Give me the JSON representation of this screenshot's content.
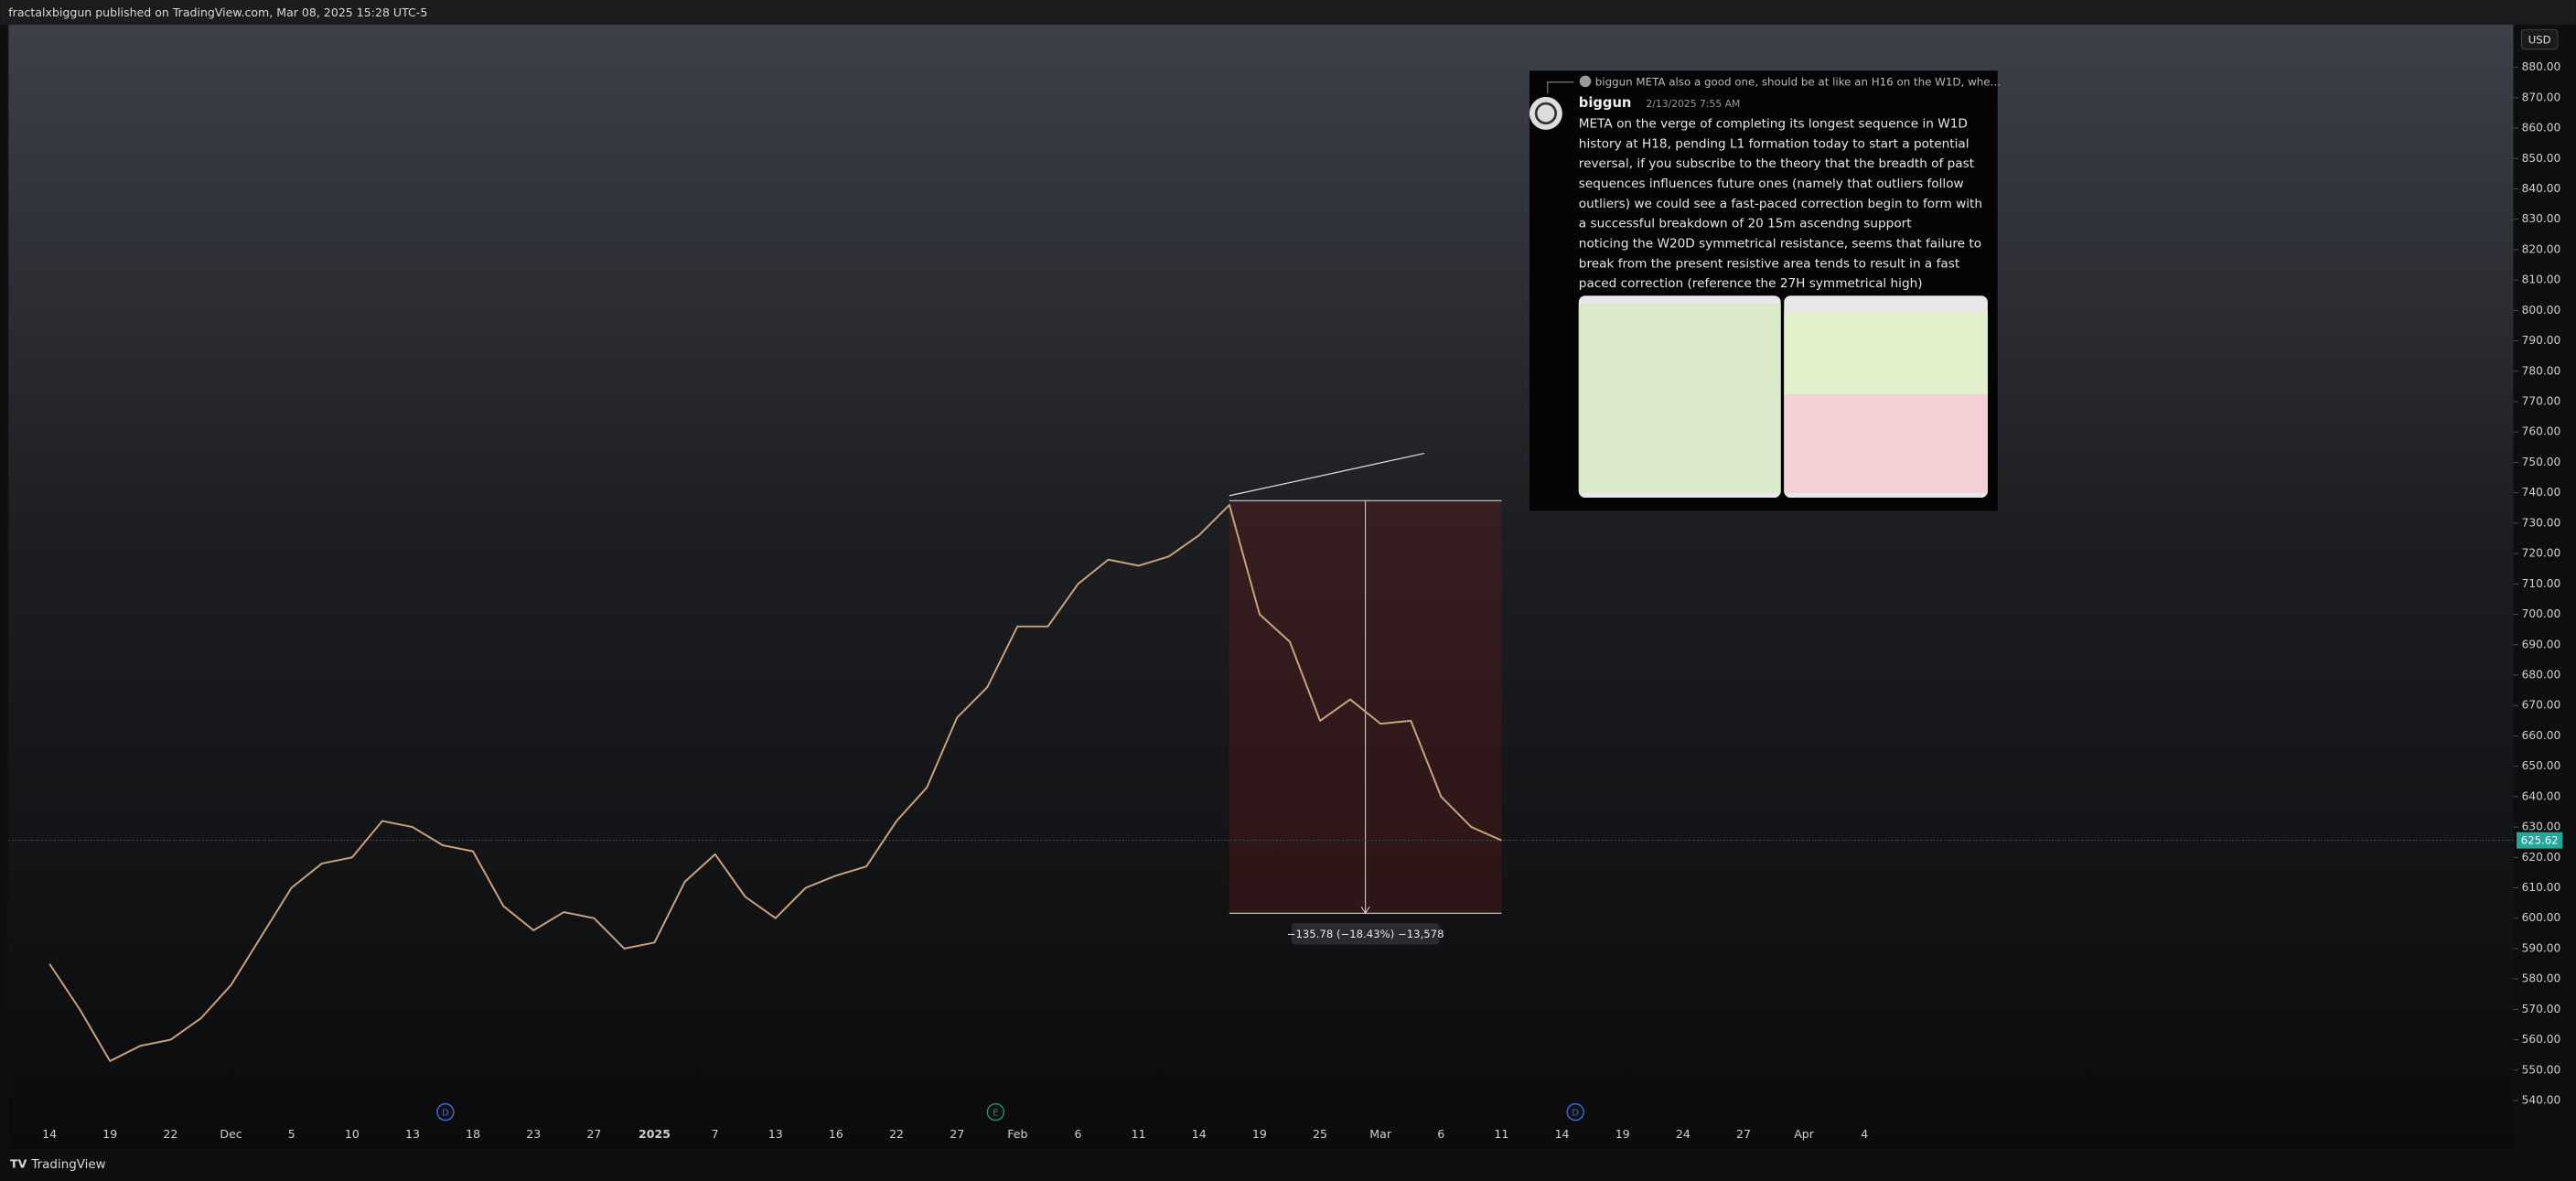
{
  "header": "fractalxbiggun published on TradingView.com, Mar 08, 2025 15:28 UTC-5",
  "footer": "TradingView",
  "chart_data": {
    "type": "line",
    "currency": "USD",
    "categories": [
      "14",
      null,
      "19",
      null,
      "22",
      null,
      "Dec",
      null,
      "5",
      null,
      "10",
      null,
      "13",
      null,
      "18",
      null,
      "23",
      null,
      "27",
      null,
      "2025",
      null,
      "7",
      null,
      "13",
      null,
      "16",
      null,
      "22",
      null,
      "27",
      null,
      "Feb",
      null,
      "6",
      null,
      "11",
      null,
      "14",
      null,
      "19",
      null,
      "25",
      null,
      "Mar",
      null,
      "6",
      null,
      "11",
      null,
      "14",
      null,
      "19",
      null,
      "24",
      null,
      "27",
      null,
      "Apr",
      null,
      "4"
    ],
    "series": [
      {
        "name": "META",
        "color": "#c9a27e",
        "values": [
          585,
          570,
          553,
          558,
          560,
          567,
          578,
          594,
          610,
          618,
          620,
          632,
          630,
          624,
          622,
          604,
          596,
          602,
          600,
          590,
          592,
          612,
          621,
          607,
          600,
          610,
          614,
          617,
          632,
          643,
          666,
          676,
          696,
          696,
          710,
          718,
          716,
          719,
          726,
          736,
          700,
          691,
          665,
          672,
          664,
          665,
          640,
          630,
          625.62,
          null,
          null,
          null,
          null,
          null,
          null,
          null,
          null,
          null,
          null,
          null,
          null
        ]
      }
    ],
    "ylim": [
      540,
      880
    ],
    "yticks": [
      {
        "value": 540,
        "label": "540.00"
      },
      {
        "value": 550,
        "label": "550.00"
      },
      {
        "value": 560,
        "label": "560.00"
      },
      {
        "value": 570,
        "label": "570.00"
      },
      {
        "value": 580,
        "label": "580.00"
      },
      {
        "value": 590,
        "label": "590.00"
      },
      {
        "value": 600,
        "label": "600.00"
      },
      {
        "value": 610,
        "label": "610.00"
      },
      {
        "value": 620,
        "label": "620.00"
      },
      {
        "value": 630,
        "label": "630.00"
      },
      {
        "value": 640,
        "label": "640.00"
      },
      {
        "value": 650,
        "label": "650.00"
      },
      {
        "value": 660,
        "label": "660.00"
      },
      {
        "value": 670,
        "label": "670.00"
      },
      {
        "value": 680,
        "label": "680.00"
      },
      {
        "value": 690,
        "label": "690.00"
      },
      {
        "value": 700,
        "label": "700.00"
      },
      {
        "value": 710,
        "label": "710.00"
      },
      {
        "value": 720,
        "label": "720.00"
      },
      {
        "value": 730,
        "label": "730.00"
      },
      {
        "value": 740,
        "label": "740.00"
      },
      {
        "value": 750,
        "label": "750.00"
      },
      {
        "value": 760,
        "label": "760.00"
      },
      {
        "value": 770,
        "label": "770.00"
      },
      {
        "value": 780,
        "label": "780.00"
      },
      {
        "value": 790,
        "label": "790.00"
      },
      {
        "value": 800,
        "label": "800.00"
      },
      {
        "value": 810,
        "label": "810.00"
      },
      {
        "value": 820,
        "label": "820.00"
      },
      {
        "value": 830,
        "label": "830.00"
      },
      {
        "value": 840,
        "label": "840.00"
      },
      {
        "value": 850,
        "label": "850.00"
      },
      {
        "value": 860,
        "label": "860.00"
      },
      {
        "value": 870,
        "label": "870.00"
      },
      {
        "value": 880,
        "label": "880.00"
      }
    ],
    "grid": false,
    "last_price": 625.62,
    "measure": {
      "high": 737.4,
      "low": 601.62,
      "label": "−135.78 (−18.43%) −13,578"
    },
    "events": [
      "D",
      "E",
      "D"
    ]
  },
  "message": {
    "reply": "biggun META also a good one, should be at like an H16 on the W1D, whe...",
    "author": "biggun",
    "timestamp": "2/13/2025 7:55 AM",
    "lines": [
      "META on the verge of completing its longest sequence in W1D",
      "history at H18, pending L1 formation today to start a potential",
      "reversal, if you subscribe to the theory that the breadth of past",
      "sequences influences future ones (namely that outliers follow",
      "outliers) we could see a fast-paced correction begin to form with",
      "a successful breakdown of 20 15m ascendng support",
      "noticing the W20D symmetrical resistance, seems that failure to",
      "break from the present resistive area tends to result in a fast",
      "paced correction (reference the 27H symmetrical high)"
    ]
  }
}
